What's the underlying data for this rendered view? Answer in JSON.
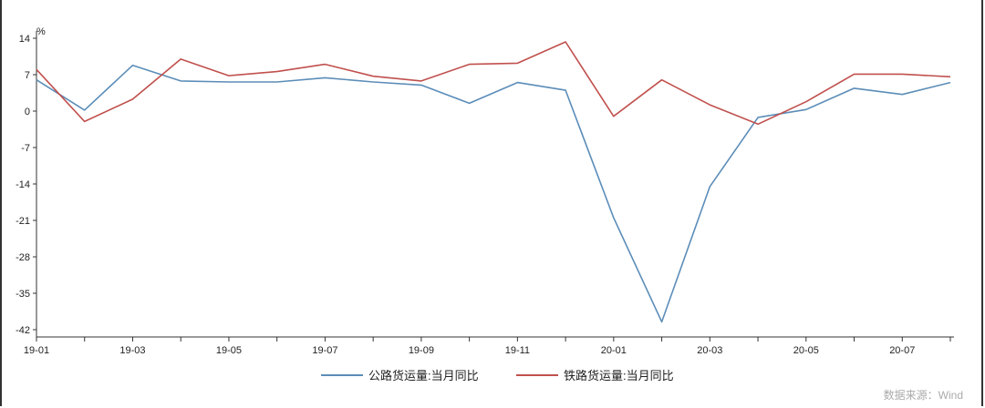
{
  "chart_data": {
    "type": "line",
    "ylabel": "%",
    "ylim": [
      -42,
      14
    ],
    "yticks": [
      14,
      7,
      0,
      -7,
      -14,
      -21,
      -28,
      -35,
      -42
    ],
    "x": [
      "19-01",
      "19-02",
      "19-03",
      "19-04",
      "19-05",
      "19-06",
      "19-07",
      "19-08",
      "19-09",
      "19-10",
      "19-11",
      "19-12",
      "20-01",
      "20-02",
      "20-03",
      "20-04",
      "20-05",
      "20-06",
      "20-07",
      "20-08"
    ],
    "xtick_labels": [
      "19-01",
      "19-03",
      "19-05",
      "19-07",
      "19-09",
      "19-11",
      "20-01",
      "20-03",
      "20-05",
      "20-07"
    ],
    "series": [
      {
        "name": "公路货运量:当月同比",
        "color": "#5b8db8",
        "values": [
          6.0,
          0.2,
          8.8,
          5.8,
          5.6,
          5.6,
          6.4,
          5.6,
          5.0,
          1.5,
          5.5,
          4.0,
          -20.5,
          -40.5,
          -14.5,
          -1.2,
          0.3,
          4.4,
          3.2,
          5.5
        ]
      },
      {
        "name": "铁路货运量:当月同比",
        "color": "#c0504d",
        "values": [
          8.0,
          -2.0,
          2.3,
          10.0,
          6.8,
          7.6,
          9.0,
          6.7,
          5.8,
          9.0,
          9.2,
          13.3,
          -1.0,
          6.0,
          1.2,
          -2.5,
          1.8,
          7.1,
          7.1,
          6.6
        ]
      }
    ],
    "grid": false,
    "legend_position": "bottom"
  },
  "source": "数据来源：Wind"
}
